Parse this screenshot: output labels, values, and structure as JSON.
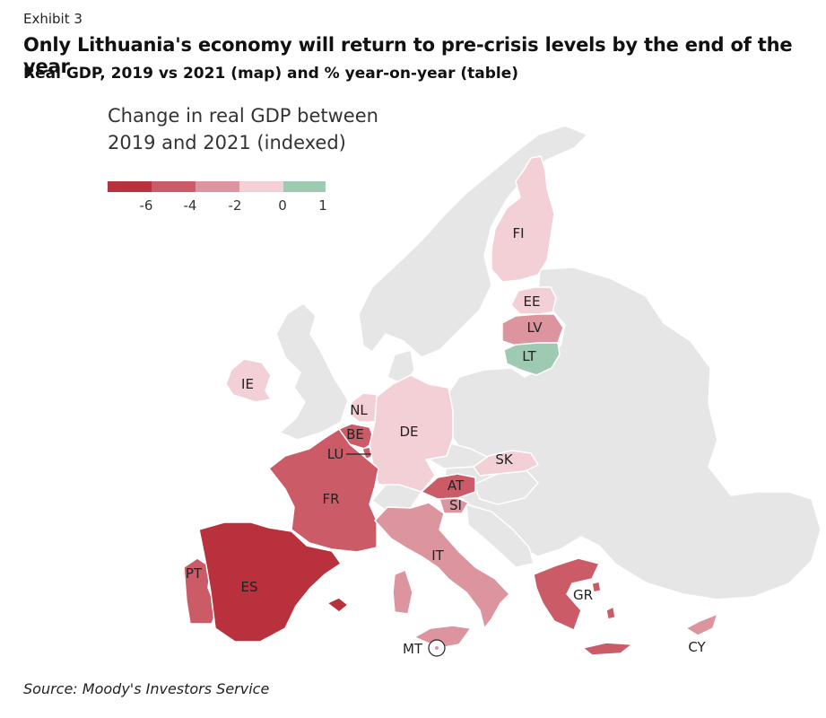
{
  "header": {
    "exhibit": "Exhibit 3",
    "title": "Only Lithuania's economy will return to pre-crisis levels by the end of the year",
    "subtitle": "Real GDP, 2019 vs 2021 (map) and % year-on-year (table)"
  },
  "legend": {
    "title_line1": "Change in real GDP between",
    "title_line2": "2019 and 2021 (indexed)",
    "bins": [
      {
        "color": "#b8313d"
      },
      {
        "color": "#cc5b68"
      },
      {
        "color": "#dc949e"
      },
      {
        "color": "#f3cfd6"
      },
      {
        "color": "#9fcab2"
      }
    ],
    "tick_labels": [
      "-6",
      "-4",
      "-2",
      "0",
      "1"
    ]
  },
  "colors": {
    "non_euro": "#e6e6e6",
    "border": "#ffffff",
    "label": "#222222"
  },
  "countries": [
    {
      "code": "FI",
      "label": "FI",
      "bin": 3
    },
    {
      "code": "EE",
      "label": "EE",
      "bin": 3
    },
    {
      "code": "LV",
      "label": "LV",
      "bin": 2
    },
    {
      "code": "LT",
      "label": "LT",
      "bin": 4
    },
    {
      "code": "IE",
      "label": "IE",
      "bin": 3
    },
    {
      "code": "NL",
      "label": "NL",
      "bin": 3
    },
    {
      "code": "BE",
      "label": "BE",
      "bin": 1
    },
    {
      "code": "LU",
      "label": "LU",
      "bin": 1
    },
    {
      "code": "DE",
      "label": "DE",
      "bin": 3
    },
    {
      "code": "FR",
      "label": "FR",
      "bin": 1
    },
    {
      "code": "SK",
      "label": "SK",
      "bin": 3
    },
    {
      "code": "AT",
      "label": "AT",
      "bin": 1
    },
    {
      "code": "SI",
      "label": "SI",
      "bin": 2
    },
    {
      "code": "IT",
      "label": "IT",
      "bin": 2
    },
    {
      "code": "PT",
      "label": "PT",
      "bin": 1
    },
    {
      "code": "ES",
      "label": "ES",
      "bin": 0
    },
    {
      "code": "GR",
      "label": "GR",
      "bin": 1
    },
    {
      "code": "CY",
      "label": "CY",
      "bin": 2
    },
    {
      "code": "MT",
      "label": "MT",
      "bin": 2
    }
  ],
  "source": "Source: Moody's Investors Service"
}
